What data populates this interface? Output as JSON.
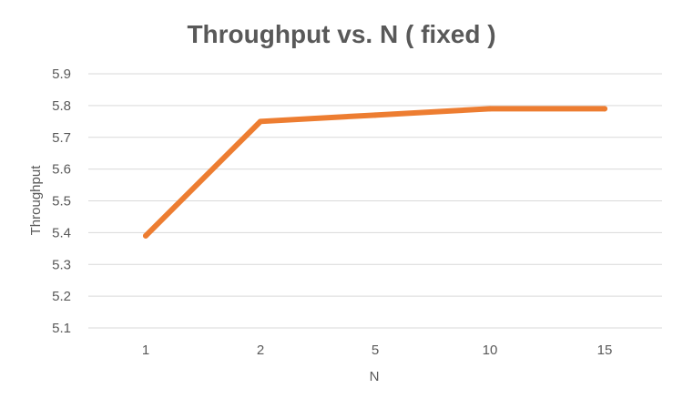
{
  "chart_data": {
    "type": "line",
    "title": "Throughput vs. N ( fixed )",
    "xlabel": "N",
    "ylabel": "Throughput",
    "categories": [
      "1",
      "2",
      "5",
      "10",
      "15"
    ],
    "series": [
      {
        "name": "Throughput",
        "values": [
          5.39,
          5.75,
          5.77,
          5.79,
          5.79
        ]
      }
    ],
    "ylim": [
      5.1,
      5.9
    ],
    "yticks": [
      "5.1",
      "5.2",
      "5.3",
      "5.4",
      "5.5",
      "5.6",
      "5.7",
      "5.8",
      "5.9"
    ],
    "grid": true,
    "legend": "none",
    "colors": {
      "line": "#ED7D31",
      "grid": "#D9D9D9",
      "text": "#595959"
    }
  }
}
